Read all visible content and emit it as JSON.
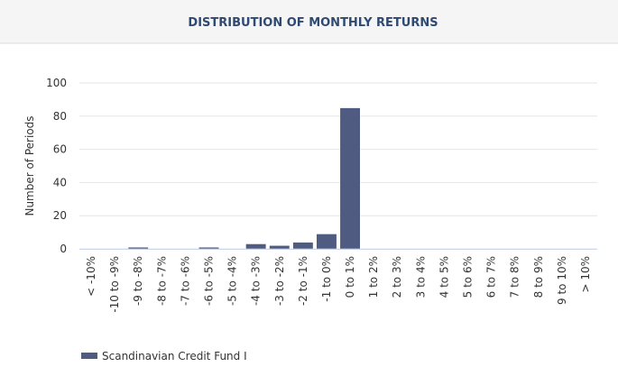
{
  "chart_data": {
    "type": "bar",
    "title": "DISTRIBUTION OF MONTHLY RETURNS",
    "y_label": "Number of Periods",
    "categories": [
      "< -10%",
      "-10 to -9%",
      "-9 to -8%",
      "-8 to -7%",
      "-7 to -6%",
      "-6 to -5%",
      "-5 to -4%",
      "-4 to -3%",
      "-3 to -2%",
      "-2 to -1%",
      "-1 to 0%",
      "0 to 1%",
      "1 to 2%",
      "2 to 3%",
      "3 to 4%",
      "4 to 5%",
      "5 to 6%",
      "6 to 7%",
      "7 to 8%",
      "8 to 9%",
      "9 to 10%",
      "> 10%"
    ],
    "series": [
      {
        "name": "Scandinavian Credit Fund I",
        "color": "#4f5b80",
        "values": [
          0,
          0,
          1,
          0,
          0,
          1,
          0,
          3,
          2,
          4,
          9,
          85,
          0,
          0,
          0,
          0,
          0,
          0,
          0,
          0,
          0,
          0
        ]
      }
    ],
    "ylim": [
      0,
      100
    ],
    "yticks": [
      0,
      20,
      40,
      60,
      80,
      100
    ],
    "grid": true
  }
}
